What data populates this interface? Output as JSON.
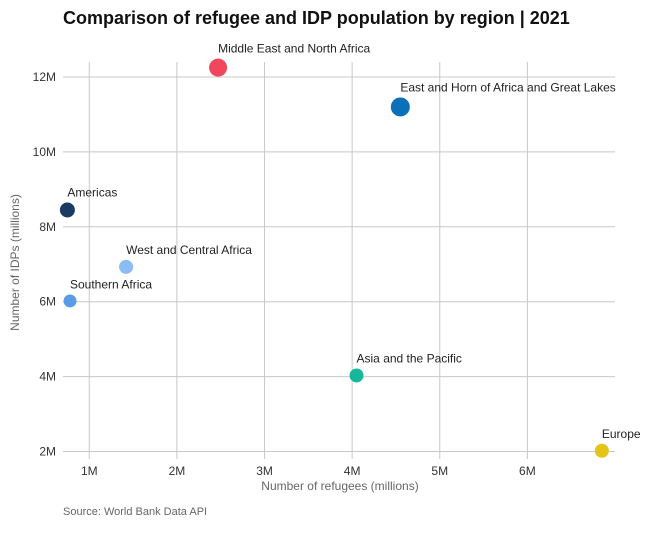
{
  "chart_data": {
    "type": "scatter",
    "title": "Comparison of refugee and IDP population by region | 2021",
    "xlabel": "Number of refugees (millions)",
    "ylabel": "Number of IDPs (millions)",
    "xlim": [
      0.7,
      7.0
    ],
    "ylim": [
      1.8,
      12.4
    ],
    "xticks": [
      1,
      2,
      3,
      4,
      5,
      6
    ],
    "xtick_labels": [
      "1M",
      "2M",
      "3M",
      "4M",
      "5M",
      "6M"
    ],
    "yticks": [
      2,
      4,
      6,
      8,
      10,
      12
    ],
    "ytick_labels": [
      "2M",
      "4M",
      "6M",
      "8M",
      "10M",
      "12M"
    ],
    "grid": true,
    "points": [
      {
        "name": "Middle East and North Africa",
        "x": 2.47,
        "y": 12.25,
        "size": 9,
        "color": "#f0475e"
      },
      {
        "name": "East and Horn of Africa and Great Lakes",
        "x": 4.55,
        "y": 11.2,
        "size": 9.5,
        "color": "#0b6fba"
      },
      {
        "name": "Americas",
        "x": 0.75,
        "y": 8.45,
        "size": 7.5,
        "color": "#1a3a63"
      },
      {
        "name": "West and Central Africa",
        "x": 1.42,
        "y": 6.93,
        "size": 7,
        "color": "#8bbcf4"
      },
      {
        "name": "Southern Africa",
        "x": 0.78,
        "y": 6.02,
        "size": 6.5,
        "color": "#5a9be6"
      },
      {
        "name": "Asia and the Pacific",
        "x": 4.05,
        "y": 4.03,
        "size": 7,
        "color": "#17b79c"
      },
      {
        "name": "Europe",
        "x": 6.85,
        "y": 2.02,
        "size": 7,
        "color": "#e2c516"
      }
    ]
  },
  "source_text": "Source: World Bank Data API"
}
